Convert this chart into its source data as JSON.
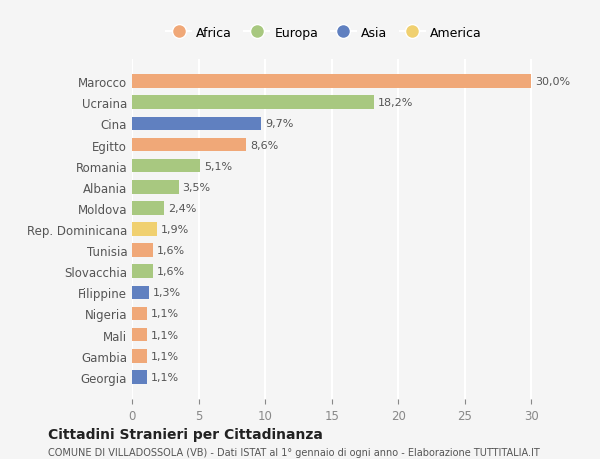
{
  "countries": [
    "Marocco",
    "Ucraina",
    "Cina",
    "Egitto",
    "Romania",
    "Albania",
    "Moldova",
    "Rep. Dominicana",
    "Tunisia",
    "Slovacchia",
    "Filippine",
    "Nigeria",
    "Mali",
    "Gambia",
    "Georgia"
  ],
  "values": [
    30.0,
    18.2,
    9.7,
    8.6,
    5.1,
    3.5,
    2.4,
    1.9,
    1.6,
    1.6,
    1.3,
    1.1,
    1.1,
    1.1,
    1.1
  ],
  "labels": [
    "30,0%",
    "18,2%",
    "9,7%",
    "8,6%",
    "5,1%",
    "3,5%",
    "2,4%",
    "1,9%",
    "1,6%",
    "1,6%",
    "1,3%",
    "1,1%",
    "1,1%",
    "1,1%",
    "1,1%"
  ],
  "continents": [
    "Africa",
    "Europa",
    "Asia",
    "Africa",
    "Europa",
    "Europa",
    "Europa",
    "America",
    "Africa",
    "Europa",
    "Asia",
    "Africa",
    "Africa",
    "Africa",
    "Asia"
  ],
  "continent_colors": {
    "Africa": "#F0A878",
    "Europa": "#A8C880",
    "Asia": "#6080C0",
    "America": "#F0D070"
  },
  "legend_order": [
    "Africa",
    "Europa",
    "Asia",
    "America"
  ],
  "title": "Cittadini Stranieri per Cittadinanza",
  "subtitle": "COMUNE DI VILLADOSSOLA (VB) - Dati ISTAT al 1° gennaio di ogni anno - Elaborazione TUTTITALIA.IT",
  "xlim": [
    0,
    32
  ],
  "xticks": [
    0,
    5,
    10,
    15,
    20,
    25,
    30
  ],
  "bg_color": "#f5f5f5",
  "grid_color": "#ffffff",
  "bar_height": 0.65
}
